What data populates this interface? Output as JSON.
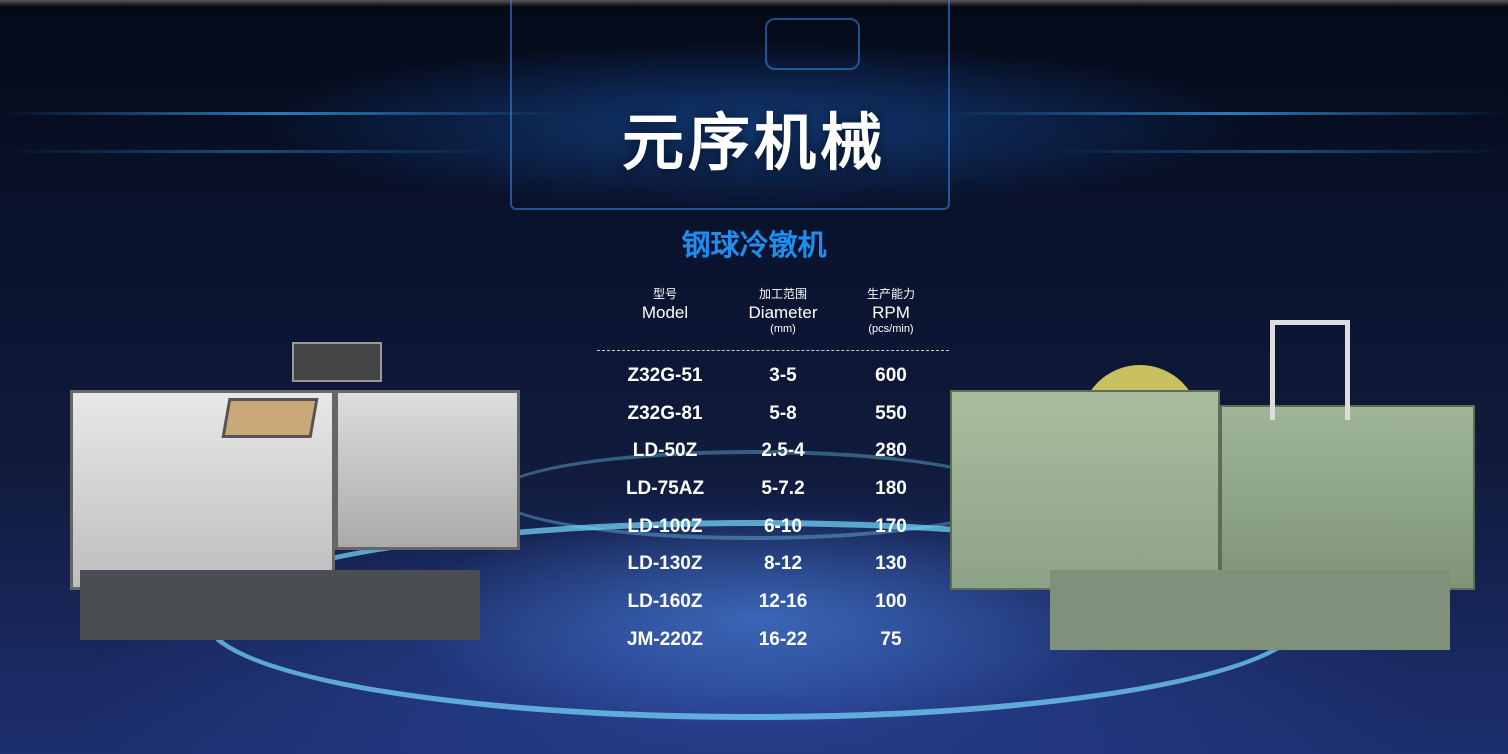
{
  "title": "元序机械",
  "subtitle": "钢球冷镦机",
  "colors": {
    "accent": "#1f8ef1",
    "background": "#0a1430"
  },
  "table": {
    "headers": [
      {
        "cn": "型号",
        "en": "Model",
        "unit": ""
      },
      {
        "cn": "加工范围",
        "en": "Diameter",
        "unit": "(mm)"
      },
      {
        "cn": "生产能力",
        "en": "RPM",
        "unit": "(pcs/min)"
      }
    ],
    "rows": [
      [
        "Z32G-51",
        "3-5",
        "600"
      ],
      [
        "Z32G-81",
        "5-8",
        "550"
      ],
      [
        "LD-50Z",
        "2.5-4",
        "280"
      ],
      [
        "LD-75AZ",
        "5-7.2",
        "180"
      ],
      [
        "LD-100Z",
        "6-10",
        "170"
      ],
      [
        "LD-130Z",
        "8-12",
        "130"
      ],
      [
        "LD-160Z",
        "12-16",
        "100"
      ],
      [
        "JM-220Z",
        "16-22",
        "75"
      ]
    ]
  }
}
